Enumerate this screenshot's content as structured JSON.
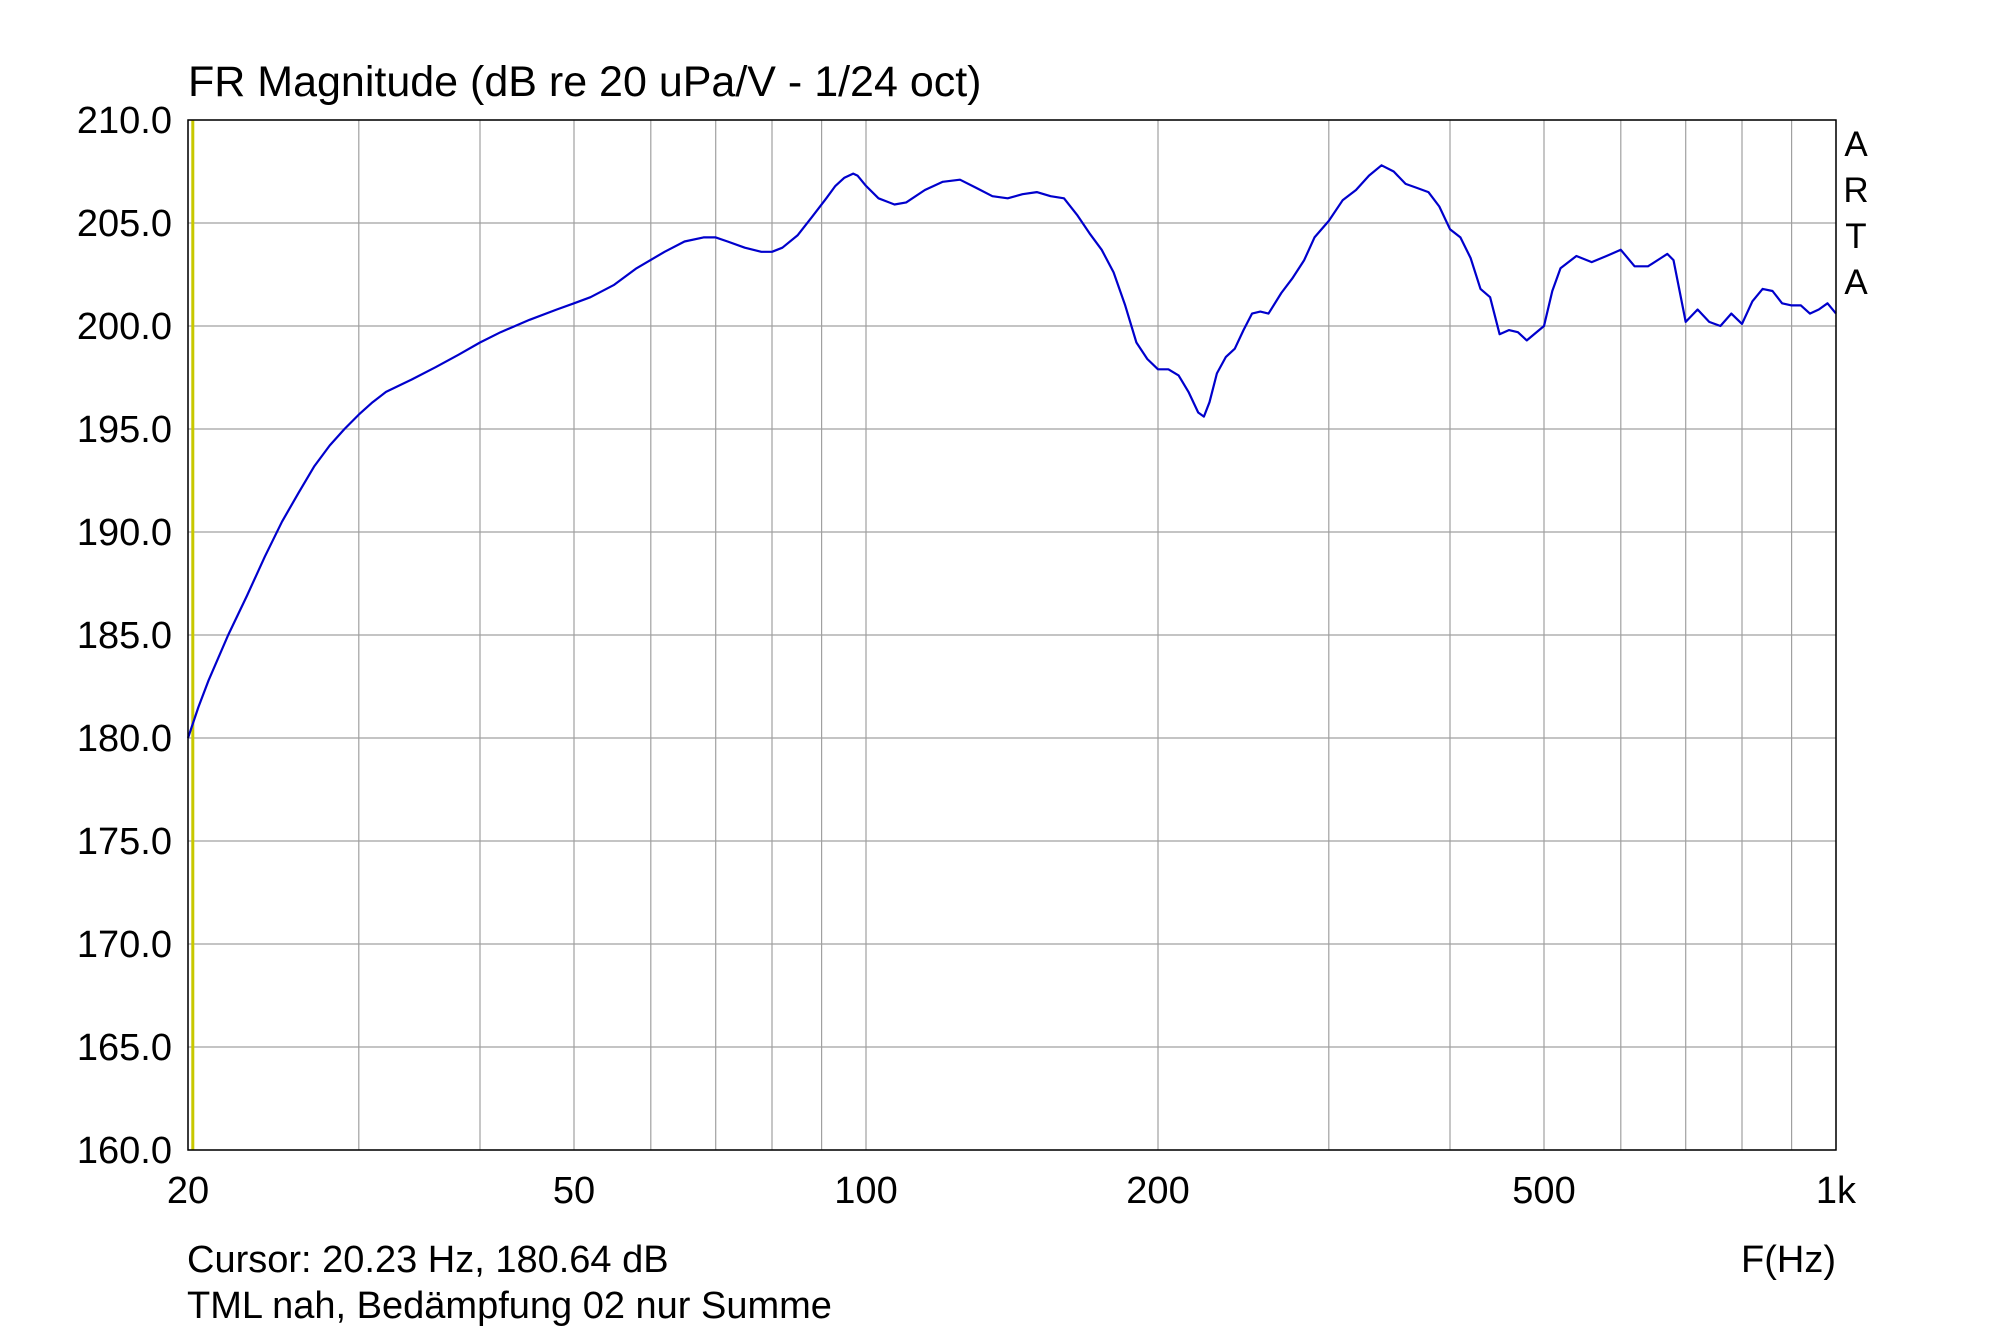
{
  "chart_data": {
    "type": "line",
    "title": "FR Magnitude (dB re 20 uPa/V - 1/24 oct)",
    "xlabel": "F(Hz)",
    "ylabel": "",
    "x_scale": "log",
    "xlim": [
      20,
      1000
    ],
    "ylim": [
      160,
      210
    ],
    "grid": true,
    "x_tick_labels": [
      {
        "value": 20,
        "label": "20"
      },
      {
        "value": 50,
        "label": "50"
      },
      {
        "value": 100,
        "label": "100"
      },
      {
        "value": 200,
        "label": "200"
      },
      {
        "value": 500,
        "label": "500"
      },
      {
        "value": 1000,
        "label": "1k"
      }
    ],
    "x_gridlines": [
      20,
      30,
      40,
      50,
      60,
      70,
      80,
      90,
      100,
      200,
      300,
      400,
      500,
      600,
      700,
      800,
      900,
      1000
    ],
    "y_ticks": [
      160,
      165,
      170,
      175,
      180,
      185,
      190,
      195,
      200,
      205,
      210
    ],
    "y_tick_labels": [
      "160.0",
      "165.0",
      "170.0",
      "175.0",
      "180.0",
      "185.0",
      "190.0",
      "195.0",
      "200.0",
      "205.0",
      "210.0"
    ],
    "cursor": {
      "x": 20.23,
      "label": "Cursor: 20.23 Hz, 180.64 dB"
    },
    "watermark": "ARTA",
    "caption": "TML nah, Bedämpfung 02 nur Summe",
    "colors": {
      "series": "#0000cc",
      "cursor": "#c8c800",
      "grid": "#a0a0a0",
      "frame": "#000000",
      "background": "#ffffff"
    },
    "series": [
      {
        "x": [
          20.0,
          20.5,
          21,
          22,
          23,
          24,
          25,
          26,
          27,
          28,
          29,
          30,
          31,
          32,
          34,
          36,
          38,
          40,
          42,
          45,
          48,
          50,
          52,
          55,
          58,
          62,
          65,
          68,
          70,
          72,
          75,
          78,
          80,
          82,
          85,
          88,
          91,
          93,
          95,
          97,
          98,
          100,
          103,
          107,
          110,
          115,
          120,
          125,
          130,
          135,
          140,
          145,
          150,
          155,
          160,
          165,
          170,
          175,
          180,
          185,
          190,
          195,
          200,
          205,
          210,
          215,
          220,
          223,
          226,
          230,
          235,
          240,
          245,
          250,
          255,
          260,
          268,
          275,
          283,
          290,
          300,
          310,
          320,
          330,
          340,
          350,
          360,
          370,
          380,
          390,
          400,
          410,
          420,
          430,
          440,
          450,
          460,
          470,
          480,
          500,
          510,
          520,
          540,
          560,
          580,
          600,
          620,
          640,
          660,
          670,
          680,
          700,
          720,
          740,
          760,
          780,
          800,
          820,
          840,
          860,
          880,
          900,
          920,
          940,
          960,
          980,
          1000
        ],
        "y": [
          180.0,
          181.5,
          182.8,
          185.0,
          186.9,
          188.8,
          190.5,
          191.9,
          193.2,
          194.2,
          195.0,
          195.7,
          196.3,
          196.8,
          197.4,
          198.0,
          198.6,
          199.2,
          199.7,
          200.3,
          200.8,
          201.1,
          201.4,
          202.0,
          202.8,
          203.6,
          204.1,
          204.3,
          204.3,
          204.1,
          203.8,
          203.6,
          203.6,
          203.8,
          204.4,
          205.3,
          206.2,
          206.8,
          207.2,
          207.4,
          207.3,
          206.8,
          206.2,
          205.9,
          206.0,
          206.6,
          207.0,
          207.1,
          206.7,
          206.3,
          206.2,
          206.4,
          206.5,
          206.3,
          206.2,
          205.4,
          204.5,
          203.7,
          202.6,
          201.0,
          199.2,
          198.4,
          197.9,
          197.9,
          197.6,
          196.8,
          195.8,
          195.6,
          196.3,
          197.7,
          198.5,
          198.9,
          199.8,
          200.6,
          200.7,
          200.6,
          201.6,
          202.3,
          203.2,
          204.3,
          205.1,
          206.1,
          206.6,
          207.3,
          207.8,
          207.5,
          206.9,
          206.7,
          206.5,
          205.8,
          204.7,
          204.3,
          203.3,
          201.8,
          201.4,
          199.6,
          199.8,
          199.7,
          199.3,
          200.0,
          201.7,
          202.8,
          203.4,
          203.1,
          203.4,
          203.7,
          202.9,
          202.9,
          203.3,
          203.5,
          203.2,
          200.2,
          200.8,
          200.2,
          200.0,
          200.6,
          200.1,
          201.2,
          201.8,
          201.7,
          201.1,
          201.0,
          201.0,
          200.6,
          200.8,
          201.1,
          200.6
        ]
      }
    ]
  }
}
